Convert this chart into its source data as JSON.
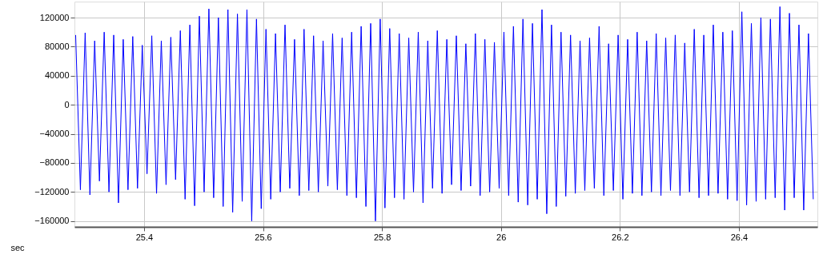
{
  "chart_data": {
    "type": "line",
    "xlabel": "sec",
    "x": [
      25.285,
      25.293,
      25.301,
      25.309,
      25.317,
      25.325,
      25.333,
      25.341,
      25.349,
      25.357,
      25.365,
      25.373,
      25.381,
      25.389,
      25.397,
      25.405,
      25.413,
      25.421,
      25.429,
      25.437,
      25.445,
      25.453,
      25.461,
      25.469,
      25.477,
      25.485,
      25.493,
      25.501,
      25.509,
      25.517,
      25.525,
      25.533,
      25.541,
      25.549,
      25.557,
      25.565,
      25.573,
      25.581,
      25.589,
      25.597,
      25.605,
      25.613,
      25.621,
      25.629,
      25.637,
      25.645,
      25.653,
      25.661,
      25.669,
      25.677,
      25.685,
      25.693,
      25.701,
      25.709,
      25.717,
      25.725,
      25.733,
      25.741,
      25.749,
      25.757,
      25.765,
      25.773,
      25.781,
      25.789,
      25.797,
      25.805,
      25.813,
      25.821,
      25.829,
      25.837,
      25.845,
      25.853,
      25.861,
      25.869,
      25.877,
      25.885,
      25.893,
      25.901,
      25.909,
      25.917,
      25.925,
      25.933,
      25.941,
      25.949,
      25.957,
      25.965,
      25.973,
      25.981,
      25.989,
      25.997,
      26.005,
      26.013,
      26.021,
      26.029,
      26.037,
      26.045,
      26.053,
      26.061,
      26.069,
      26.077,
      26.085,
      26.093,
      26.101,
      26.109,
      26.117,
      26.125,
      26.133,
      26.141,
      26.149,
      26.157,
      26.165,
      26.173,
      26.181,
      26.189,
      26.197,
      26.205,
      26.213,
      26.221,
      26.229,
      26.237,
      26.245,
      26.253,
      26.261,
      26.269,
      26.277,
      26.285,
      26.293,
      26.301,
      26.309,
      26.317,
      26.325,
      26.333,
      26.341,
      26.349,
      26.357,
      26.365,
      26.373,
      26.381,
      26.389,
      26.397,
      26.405,
      26.413,
      26.421,
      26.429,
      26.437,
      26.445,
      26.453,
      26.461,
      26.469,
      26.477,
      26.485,
      26.493,
      26.501,
      26.509,
      26.517,
      26.525
    ],
    "series": [
      {
        "color": "#0000ff",
        "values": [
          96000,
          -117000,
          99000,
          -124000,
          88000,
          -105000,
          100000,
          -120000,
          96000,
          -135000,
          90000,
          -117000,
          94000,
          -115000,
          82000,
          -95000,
          95000,
          -122000,
          88000,
          -110000,
          93000,
          -103000,
          102000,
          -130000,
          110000,
          -139000,
          122000,
          -120000,
          132000,
          -128000,
          120000,
          -140000,
          131000,
          -148000,
          125000,
          -133000,
          131000,
          -160000,
          118000,
          -143000,
          104000,
          -130000,
          98000,
          -120000,
          110000,
          -115000,
          90000,
          -125000,
          104000,
          -118000,
          95000,
          -120000,
          88000,
          -112000,
          98000,
          -117000,
          92000,
          -125000,
          100000,
          -128000,
          108000,
          -140000,
          112000,
          -160000,
          118000,
          -142000,
          105000,
          -128000,
          98000,
          -130000,
          92000,
          -120000,
          100000,
          -135000,
          88000,
          -115000,
          102000,
          -122000,
          90000,
          -110000,
          95000,
          -118000,
          84000,
          -112000,
          98000,
          -125000,
          90000,
          -120000,
          86000,
          -115000,
          100000,
          -125000,
          108000,
          -134000,
          118000,
          -138000,
          112000,
          -130000,
          131000,
          -150000,
          110000,
          -140000,
          100000,
          -126000,
          96000,
          -122000,
          88000,
          -118000,
          92000,
          -115000,
          108000,
          -125000,
          84000,
          -118000,
          96000,
          -130000,
          90000,
          -122000,
          100000,
          -125000,
          88000,
          -120000,
          98000,
          -125000,
          92000,
          -118000,
          96000,
          -125000,
          85000,
          -120000,
          104000,
          -128000,
          96000,
          -125000,
          110000,
          -122000,
          100000,
          -130000,
          102000,
          -132000,
          128000,
          -138000,
          112000,
          -133000,
          120000,
          -130000,
          118000,
          -128000,
          135000,
          -145000,
          126000,
          -128000,
          110000,
          -145000,
          98000,
          -130000
        ]
      }
    ],
    "xlim": [
      25.283,
      26.532
    ],
    "ylim": [
      -168000,
      142000
    ],
    "xticks": [
      25.4,
      25.6,
      25.8,
      26,
      26.2,
      26.4
    ],
    "yticks": [
      -160000,
      -120000,
      -80000,
      -40000,
      0,
      40000,
      80000,
      120000
    ],
    "grid": true,
    "marker": "none",
    "line_style": "solid"
  }
}
